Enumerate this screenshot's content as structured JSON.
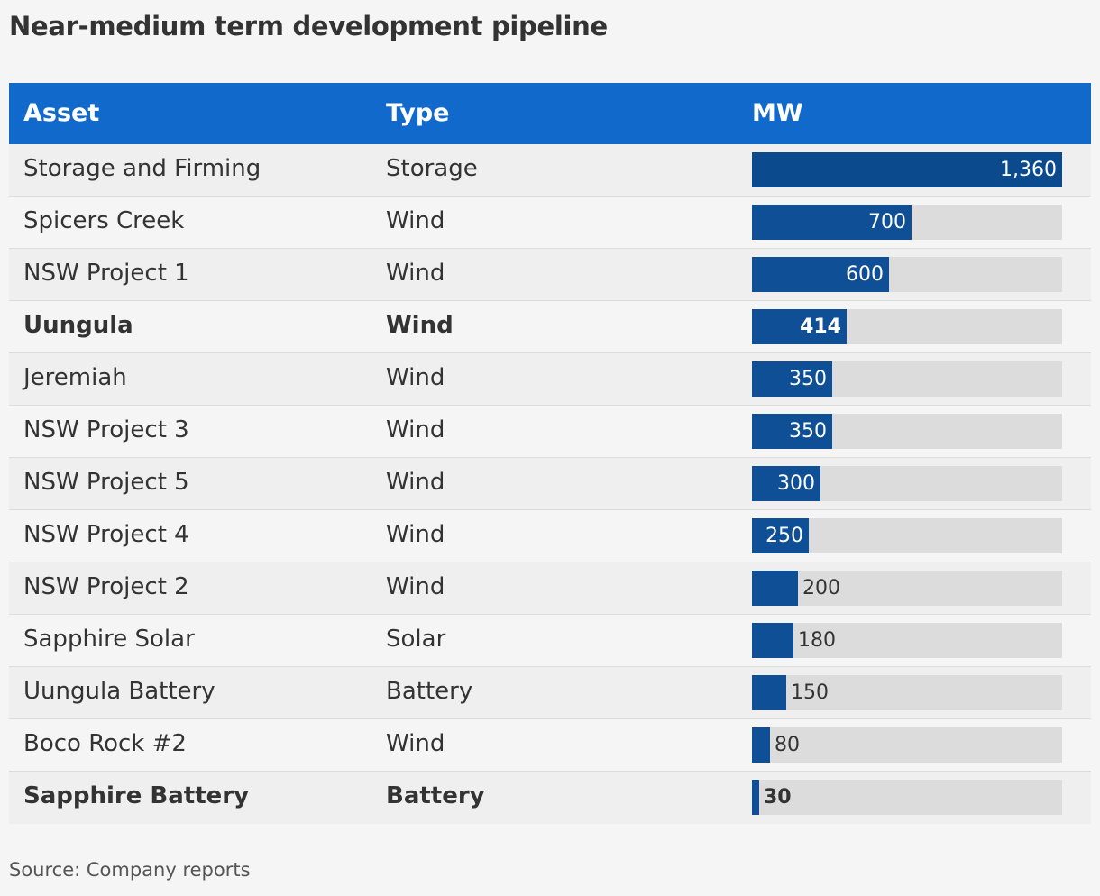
{
  "title": "Near-medium term development pipeline",
  "source": "Source: Company reports",
  "colors": {
    "header_bg": "#116acb",
    "bar": "#0f4f96",
    "track": "#dcdcdc",
    "background": "#f5f5f5"
  },
  "chart_data": {
    "type": "table",
    "title": "Near-medium term development pipeline",
    "columns": [
      "Asset",
      "Type",
      "MW"
    ],
    "xlim": [
      0,
      1360
    ],
    "rows": [
      {
        "asset": "Storage and Firming",
        "type": "Storage",
        "mw": 1360,
        "label": "1,360",
        "bold": false
      },
      {
        "asset": "Spicers Creek",
        "type": "Wind",
        "mw": 700,
        "label": "700",
        "bold": false
      },
      {
        "asset": "NSW Project 1",
        "type": "Wind",
        "mw": 600,
        "label": "600",
        "bold": false
      },
      {
        "asset": "Uungula",
        "type": "Wind",
        "mw": 414,
        "label": "414",
        "bold": true
      },
      {
        "asset": "Jeremiah",
        "type": "Wind",
        "mw": 350,
        "label": "350",
        "bold": false
      },
      {
        "asset": "NSW Project 3",
        "type": "Wind",
        "mw": 350,
        "label": "350",
        "bold": false
      },
      {
        "asset": "NSW Project 5",
        "type": "Wind",
        "mw": 300,
        "label": "300",
        "bold": false
      },
      {
        "asset": "NSW Project 4",
        "type": "Wind",
        "mw": 250,
        "label": "250",
        "bold": false
      },
      {
        "asset": "NSW Project 2",
        "type": "Wind",
        "mw": 200,
        "label": "200",
        "bold": false
      },
      {
        "asset": "Sapphire Solar",
        "type": "Solar",
        "mw": 180,
        "label": "180",
        "bold": false
      },
      {
        "asset": "Uungula Battery",
        "type": "Battery",
        "mw": 150,
        "label": "150",
        "bold": false
      },
      {
        "asset": "Boco Rock #2",
        "type": "Wind",
        "mw": 80,
        "label": "80",
        "bold": false
      },
      {
        "asset": "Sapphire Battery",
        "type": "Battery",
        "mw": 30,
        "label": "30",
        "bold": true
      }
    ]
  }
}
